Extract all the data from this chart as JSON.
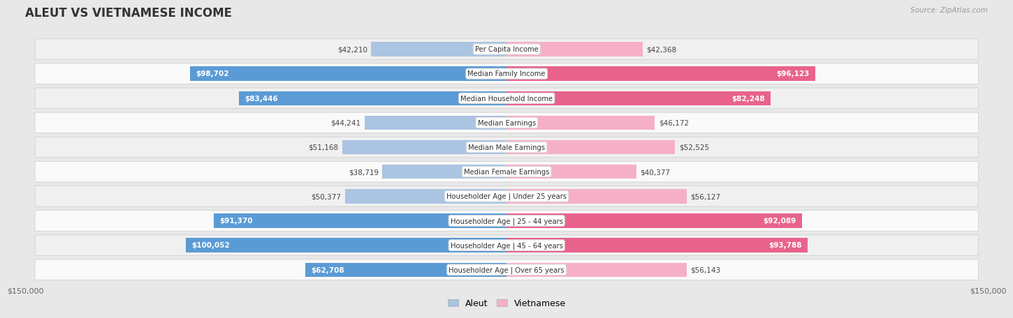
{
  "title": "ALEUT VS VIETNAMESE INCOME",
  "source": "Source: ZipAtlas.com",
  "categories": [
    "Per Capita Income",
    "Median Family Income",
    "Median Household Income",
    "Median Earnings",
    "Median Male Earnings",
    "Median Female Earnings",
    "Householder Age | Under 25 years",
    "Householder Age | 25 - 44 years",
    "Householder Age | 45 - 64 years",
    "Householder Age | Over 65 years"
  ],
  "aleut_values": [
    42210,
    98702,
    83446,
    44241,
    51168,
    38719,
    50377,
    91370,
    100052,
    62708
  ],
  "vietnamese_values": [
    42368,
    96123,
    82248,
    46172,
    52525,
    40377,
    56127,
    92089,
    93788,
    56143
  ],
  "aleut_labels": [
    "$42,210",
    "$98,702",
    "$83,446",
    "$44,241",
    "$51,168",
    "$38,719",
    "$50,377",
    "$91,370",
    "$100,052",
    "$62,708"
  ],
  "vietnamese_labels": [
    "$42,368",
    "$96,123",
    "$82,248",
    "$46,172",
    "$52,525",
    "$40,377",
    "$56,127",
    "$92,089",
    "$93,788",
    "$56,143"
  ],
  "max_value": 150000,
  "aleut_color_light": "#aac4e2",
  "aleut_color_dark": "#5b9bd5",
  "vietnamese_color_light": "#f5b0c8",
  "vietnamese_color_dark": "#e8638c",
  "background_color": "#e8e8e8",
  "row_bg_even": "#f0f0f0",
  "row_bg_odd": "#fafafa",
  "threshold_inside": 60000,
  "bar_height": 0.58,
  "legend_aleut": "Aleut",
  "legend_vietnamese": "Vietnamese"
}
